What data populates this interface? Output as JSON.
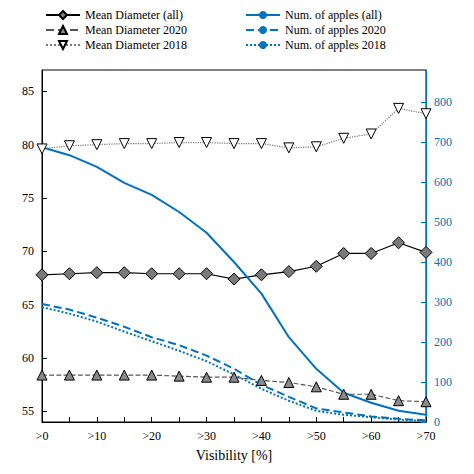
{
  "chart_data": {
    "type": "line",
    "xlabel": "Visibility [%]",
    "categories": [
      ">0",
      null,
      ">10",
      null,
      ">20",
      null,
      ">30",
      null,
      ">40",
      null,
      ">50",
      null,
      ">60",
      null,
      ">70"
    ],
    "ylim": [
      54,
      87
    ],
    "yticks": [
      55,
      60,
      65,
      70,
      75,
      80,
      85
    ],
    "y2lim": [
      0,
      880
    ],
    "y2ticks": [
      0,
      100,
      200,
      300,
      400,
      500,
      600,
      700,
      800
    ],
    "grid": false,
    "legend": "top",
    "series": [
      {
        "name": "Mean Diameter (all)",
        "color": "#000000",
        "marker": "diamond",
        "line_style": "solid",
        "values": [
          67.8,
          67.9,
          68.0,
          68.0,
          67.9,
          67.9,
          67.9,
          67.4,
          67.8,
          68.1,
          68.6,
          69.8,
          69.8,
          70.8,
          69.9
        ]
      },
      {
        "name": "Num. of apples (all)",
        "color": "#0072bd",
        "line_style": "solid",
        "axis": "y2",
        "values": [
          687,
          667,
          638,
          598,
          568,
          525,
          473,
          400,
          321,
          212,
          133,
          73,
          48,
          28,
          18
        ]
      },
      {
        "name": "Mean Diameter 2020",
        "color": "#555555",
        "marker": "triangle",
        "line_style": "dashed",
        "values": [
          58.4,
          58.4,
          58.4,
          58.4,
          58.4,
          58.3,
          58.2,
          58.2,
          57.9,
          57.7,
          57.3,
          56.6,
          56.6,
          56.0,
          55.9
        ]
      },
      {
        "name": "Num. of apples 2020",
        "color": "#0072bd",
        "line_style": "dashed",
        "axis": "y2",
        "values": [
          295,
          281,
          261,
          238,
          212,
          192,
          166,
          133,
          93,
          63,
          34,
          24,
          14,
          8,
          4
        ]
      },
      {
        "name": "Mean Diameter 2018",
        "color": "#777777",
        "marker": "triangle-down",
        "line_style": "dotted",
        "values": [
          79.6,
          79.9,
          80.0,
          80.1,
          80.1,
          80.2,
          80.2,
          80.1,
          80.1,
          79.7,
          79.8,
          80.6,
          81.0,
          83.4,
          82.9
        ]
      },
      {
        "name": "Num. of apples 2018",
        "color": "#0072bd",
        "line_style": "dotted",
        "axis": "y2",
        "values": [
          287,
          271,
          251,
          226,
          202,
          178,
          152,
          119,
          83,
          53,
          28,
          18,
          12,
          6,
          2
        ]
      }
    ]
  }
}
